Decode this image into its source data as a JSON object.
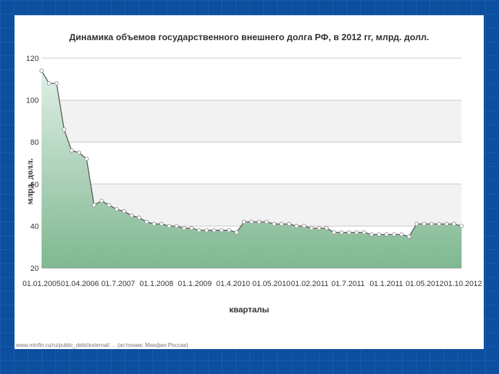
{
  "chart_data": {
    "type": "area",
    "title": "Динамика объемов государственного внешнего долга РФ, в 2012 гг, млрд. долл.",
    "xlabel": "кварталы",
    "ylabel": "млрд. долл.",
    "ylim": [
      20,
      120
    ],
    "yticks": [
      20,
      40,
      60,
      80,
      100,
      120
    ],
    "x_tick_labels": [
      "01.01.2005",
      "01.04.2006",
      "01.7.2007",
      "01.1.2008",
      "01.1.2009",
      "01.4.2010",
      "01.05.2010",
      "01.02.2011",
      "01.7.2011",
      "01.1.2011",
      "01.05.2012",
      "01.10.2012"
    ],
    "grid": true,
    "series": [
      {
        "values": [
          114,
          108,
          108,
          86,
          76,
          75,
          72,
          50,
          52,
          50,
          48,
          47,
          45,
          44,
          42,
          41,
          41,
          40,
          40,
          39,
          39,
          38,
          38,
          38,
          38,
          38,
          37,
          42,
          42,
          42,
          42,
          41,
          41,
          41,
          40,
          40,
          39,
          39,
          39,
          37,
          37,
          37,
          37,
          37,
          36,
          36,
          36,
          36,
          36,
          35,
          41,
          41,
          41,
          41,
          41,
          41,
          40
        ]
      }
    ]
  },
  "source_note": "www.minfin.ru/ru/public_debt/external/ ... (источник: Минфин России)",
  "colors": {
    "area_top": "#dfeee5",
    "area_bottom": "#7fb891",
    "line": "#555555",
    "marker_fill": "#ffffff",
    "marker_stroke": "#9a9a9a",
    "band": "#f2f2f2",
    "background": "#0b4f9e"
  }
}
